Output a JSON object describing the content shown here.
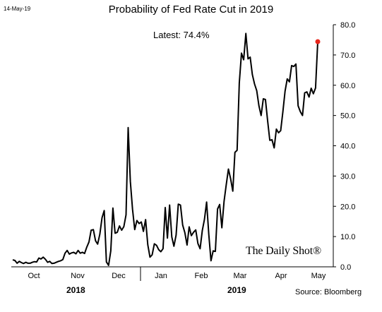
{
  "header": {
    "date": "14-May-19"
  },
  "annotations": {
    "latest": "Latest:  74.4%",
    "brand": "The Daily Shot®",
    "source": "Source: Bloomberg"
  },
  "colors": {
    "line": "#000000",
    "marker": "#e8261c",
    "axis": "#000000"
  },
  "chart_data": {
    "type": "line",
    "title": "Probability of Fed Rate Cut in 2019",
    "xlabel": "",
    "ylabel": "",
    "ylim": [
      0,
      80
    ],
    "yticks": [
      "0.0",
      "10.0",
      "20.0",
      "30.0",
      "40.0",
      "50.0",
      "60.0",
      "70.0",
      "80.0"
    ],
    "xticks": [
      "Oct",
      "Nov",
      "Dec",
      "Jan",
      "Feb",
      "Mar",
      "Apr",
      "May"
    ],
    "years": [
      "2018",
      "2019"
    ],
    "grid": false,
    "series": [
      {
        "name": "",
        "values": [
          2.3,
          2.1,
          1.2,
          1.8,
          1.4,
          1.1,
          1.5,
          1.2,
          1.2,
          1.5,
          1.7,
          1.6,
          2.9,
          2.6,
          3.2,
          2.5,
          1.5,
          1.8,
          1.1,
          1.2,
          1.5,
          1.8,
          2.0,
          2.4,
          4.5,
          5.4,
          4.2,
          4.6,
          4.8,
          4.3,
          5.4,
          4.5,
          4.8,
          4.4,
          6.5,
          8.2,
          12.1,
          12.3,
          8.6,
          7.5,
          10.8,
          16.2,
          18.6,
          1.6,
          0.5,
          5.3,
          19.4,
          11.1,
          11.4,
          13.5,
          12.1,
          13.3,
          17.2,
          46.0,
          28.2,
          19.0,
          12.3,
          15.3,
          14.3,
          14.8,
          11.7,
          15.6,
          7.3,
          3.2,
          4.0,
          7.6,
          7.1,
          5.7,
          5.0,
          6.0,
          19.6,
          9.5,
          20.4,
          9.9,
          6.8,
          10.5,
          20.7,
          20.4,
          13.8,
          11.3,
          7.2,
          13.2,
          10.3,
          11.4,
          12.2,
          7.7,
          6.0,
          12.0,
          15.6,
          21.4,
          10.7,
          2.0,
          5.3,
          5.1,
          19.1,
          20.6,
          12.9,
          21.6,
          27.1,
          32.3,
          29.1,
          25.0,
          37.8,
          38.5,
          60.8,
          70.6,
          68.4,
          77.1,
          68.7,
          69.3,
          63.5,
          60.4,
          58.2,
          53.2,
          50.0,
          55.5,
          55.3,
          48.3,
          41.8,
          42.0,
          39.3,
          45.5,
          44.3,
          45.0,
          51.2,
          58.0,
          62.1,
          61.1,
          66.5,
          66.2,
          67.0,
          53.2,
          51.3,
          50.0,
          57.5,
          57.8,
          56.1,
          59.0,
          57.2,
          59.1,
          74.4
        ]
      }
    ]
  }
}
